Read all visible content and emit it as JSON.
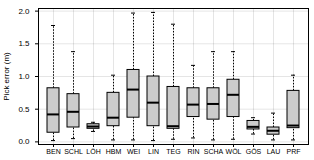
{
  "chart_data": {
    "type": "box",
    "ylabel": "Pick error (m)",
    "categories": [
      "BEN",
      "SCHL",
      "LÖH",
      "HBM",
      "WEI",
      "LIN",
      "TEG",
      "RIN",
      "SCHA",
      "WÖL",
      "GÖS",
      "LAU",
      "PRF"
    ],
    "boxes": [
      {
        "q1": 0.14,
        "q2": 0.42,
        "q3": 0.82,
        "whislo": 0.02,
        "whishi": 1.78
      },
      {
        "q1": 0.22,
        "q2": 0.46,
        "q3": 0.73,
        "whislo": 0.05,
        "whishi": 1.38
      },
      {
        "q1": 0.2,
        "q2": 0.235,
        "q3": 0.27,
        "whislo": 0.16,
        "whishi": 0.3
      },
      {
        "q1": 0.24,
        "q2": 0.37,
        "q3": 0.75,
        "whislo": 0.03,
        "whishi": 1.02
      },
      {
        "q1": 0.37,
        "q2": 0.8,
        "q3": 1.1,
        "whislo": 0.03,
        "whishi": 1.97
      },
      {
        "q1": 0.24,
        "q2": 0.6,
        "q3": 1.0,
        "whislo": 0.02,
        "whishi": 1.98
      },
      {
        "q1": 0.2,
        "q2": 0.24,
        "q3": 0.84,
        "whislo": 0.04,
        "whishi": 1.8
      },
      {
        "q1": 0.38,
        "q2": 0.57,
        "q3": 0.82,
        "whislo": 0.06,
        "whishi": 1.17
      },
      {
        "q1": 0.34,
        "q2": 0.58,
        "q3": 0.82,
        "whislo": 0.03,
        "whishi": 1.38
      },
      {
        "q1": 0.38,
        "q2": 0.72,
        "q3": 0.95,
        "whislo": 0.04,
        "whishi": 1.38
      },
      {
        "q1": 0.19,
        "q2": 0.23,
        "q3": 0.32,
        "whislo": 0.12,
        "whishi": 0.37
      },
      {
        "q1": 0.11,
        "q2": 0.17,
        "q3": 0.22,
        "whislo": 0.03,
        "whishi": 0.44
      },
      {
        "q1": 0.21,
        "q2": 0.25,
        "q3": 0.78,
        "whislo": 0.03,
        "whishi": 1.02
      }
    ],
    "ylim": [
      -0.04,
      2.04
    ],
    "yticks": [
      {
        "value": 0,
        "label": "0.0"
      },
      0.5,
      {
        "value": 1.0,
        "label": "1.0"
      },
      1.5,
      {
        "value": 2.0,
        "label": "2.0"
      }
    ],
    "grid": true
  }
}
